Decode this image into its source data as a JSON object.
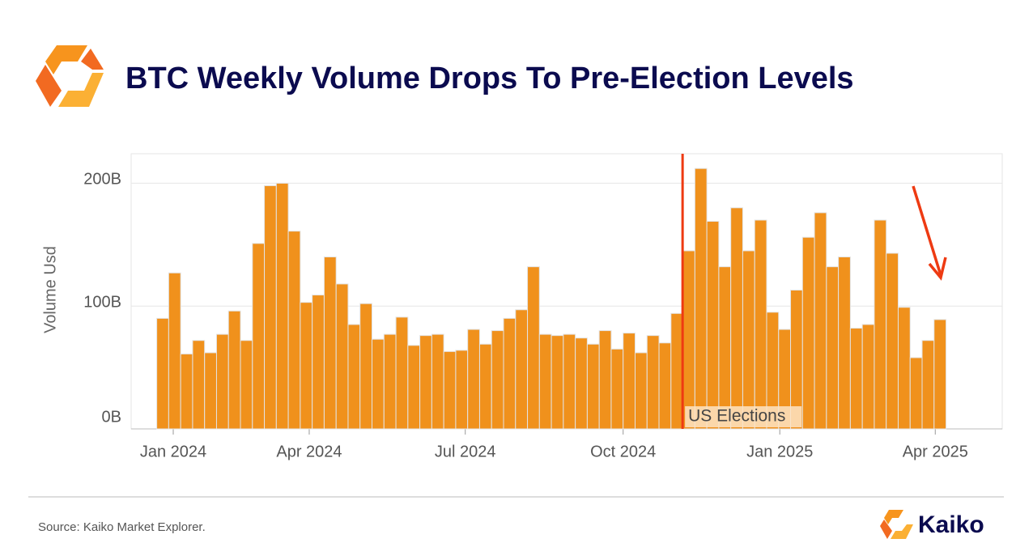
{
  "header": {
    "title": "BTC Weekly Volume Drops To Pre-Election Levels"
  },
  "chart_data": {
    "type": "bar",
    "y_label": "Volume Usd",
    "values": [
      90,
      127,
      61,
      72,
      62,
      77,
      96,
      72,
      151,
      198,
      200,
      161,
      103,
      109,
      140,
      118,
      85,
      102,
      73,
      77,
      91,
      68,
      76,
      77,
      63,
      64,
      81,
      69,
      80,
      90,
      97,
      132,
      77,
      76,
      77,
      74,
      69,
      80,
      65,
      78,
      62,
      76,
      70,
      94,
      145,
      212,
      169,
      132,
      180,
      145,
      170,
      95,
      81,
      113,
      156,
      176,
      132,
      140,
      82,
      85,
      170,
      143,
      99,
      58,
      72,
      89
    ],
    "color": "#f0911c",
    "ylim": [
      0,
      224
    ],
    "yticks": [
      {
        "value": 0,
        "label": "0B"
      },
      {
        "value": 100,
        "label": "100B"
      },
      {
        "value": 200,
        "label": "200B"
      }
    ],
    "xlim": [
      -2.64,
      70.2
    ],
    "xticks": [
      {
        "value": 0.88,
        "label": "Jan 2024"
      },
      {
        "value": 12.25,
        "label": "Apr 2024"
      },
      {
        "value": 25.3,
        "label": "Jul 2024"
      },
      {
        "value": 38.5,
        "label": "Oct 2024"
      },
      {
        "value": 51.6,
        "label": "Jan 2025"
      },
      {
        "value": 64.6,
        "label": "Apr 2025"
      }
    ],
    "grid": true,
    "annotation": {
      "text": "US Elections",
      "x": 43.47,
      "color": "#ee3a12"
    }
  },
  "footer": {
    "source": "Source: Kaiko Market Explorer.",
    "brand": "Kaiko"
  }
}
